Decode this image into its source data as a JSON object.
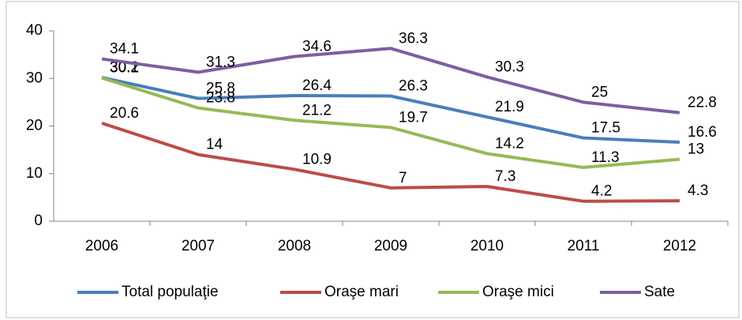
{
  "chart_data": {
    "type": "line",
    "categories": [
      "2006",
      "2007",
      "2008",
      "2009",
      "2010",
      "2011",
      "2012"
    ],
    "series": [
      {
        "name": "Total populaţie",
        "color": "#4a7ebb",
        "values": [
          30.2,
          25.8,
          26.4,
          26.3,
          21.9,
          17.5,
          16.6
        ]
      },
      {
        "name": "Oraşe mari",
        "color": "#be4b48",
        "values": [
          20.6,
          14,
          10.9,
          7,
          7.3,
          4.2,
          4.3
        ]
      },
      {
        "name": "Oraşe mici",
        "color": "#98b954",
        "values": [
          30.1,
          23.8,
          21.2,
          19.7,
          14.2,
          11.3,
          13
        ]
      },
      {
        "name": "Sate",
        "color": "#7d5fa0",
        "values": [
          34.1,
          31.3,
          34.6,
          36.3,
          30.3,
          25,
          22.8
        ]
      }
    ],
    "ylim": [
      0,
      40
    ],
    "yticks": [
      0,
      10,
      20,
      30,
      40
    ],
    "grid": false,
    "legend": "bottom"
  }
}
